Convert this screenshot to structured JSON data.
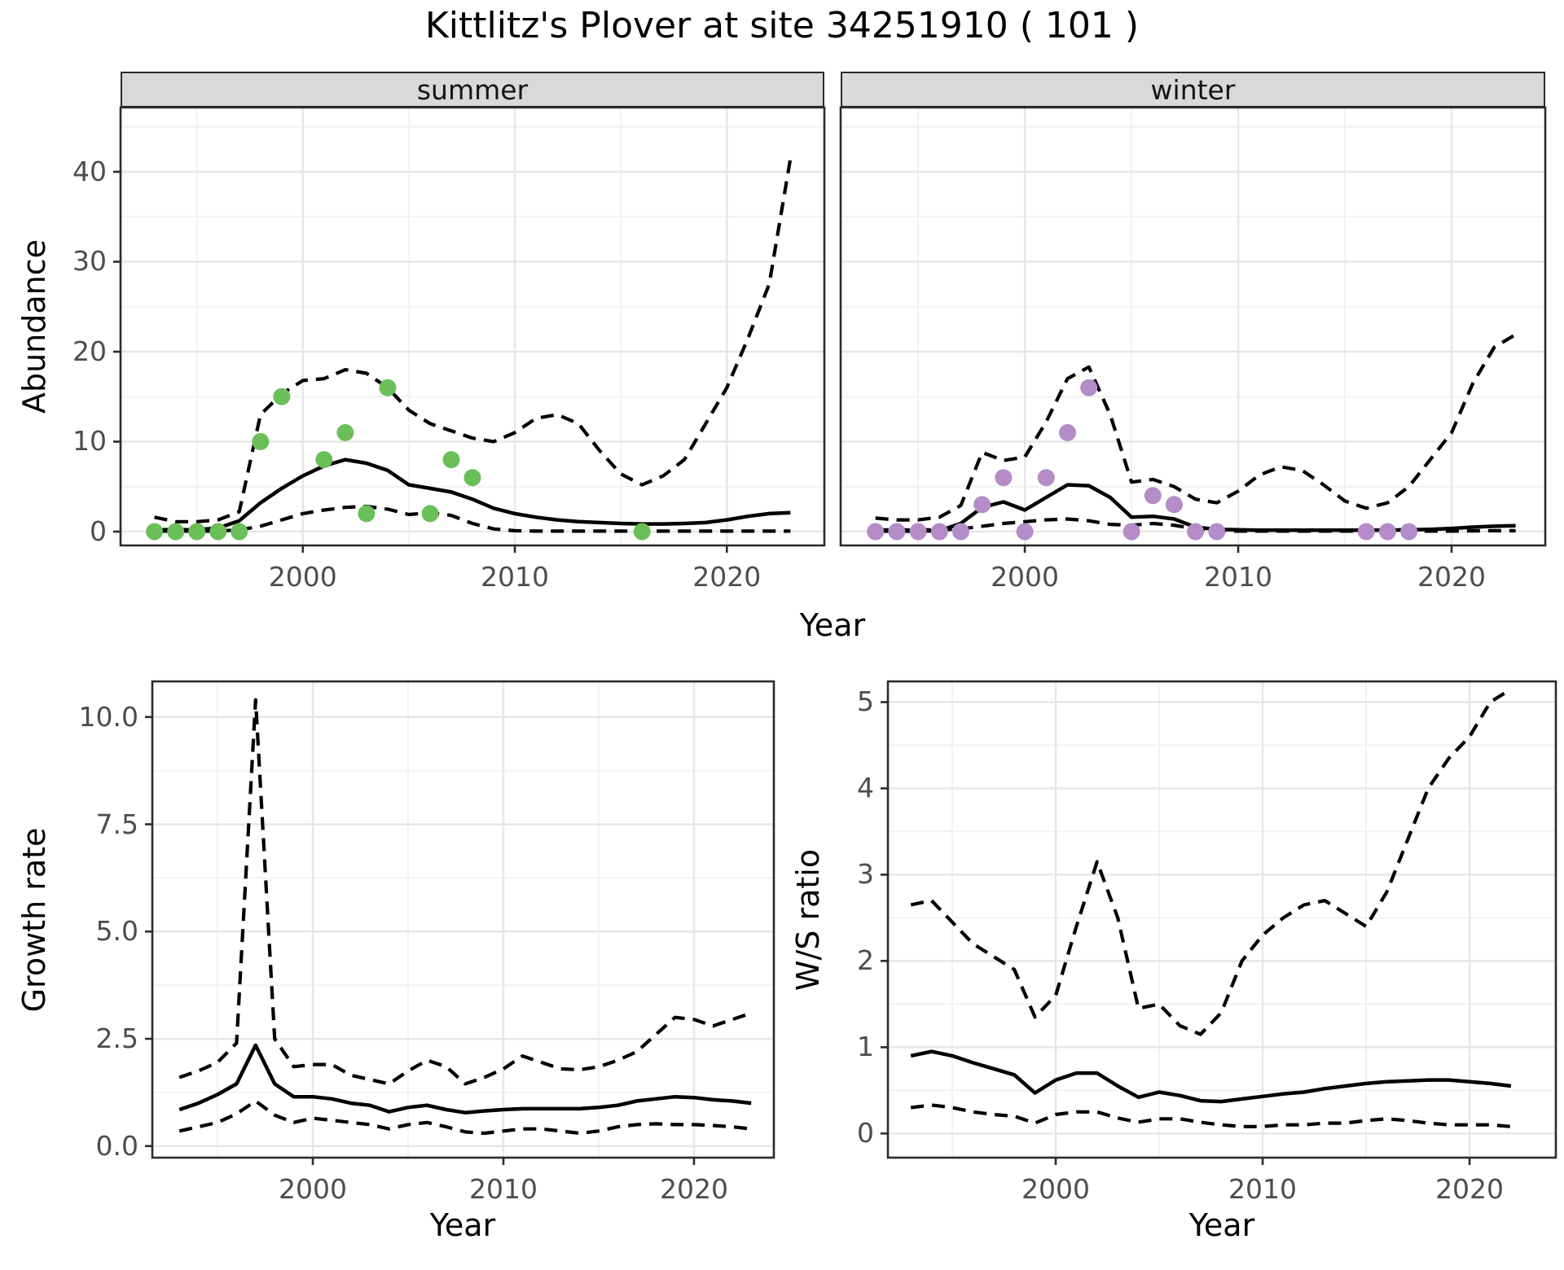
{
  "chart_data": {
    "figure_title": "Kittlitz's Plover at site 34251910 ( 101 )",
    "colors": {
      "summer_points": "#6abf59",
      "winter_points": "#b48cc8",
      "line": "#000000",
      "grid_major": "#e6e6e6",
      "grid_minor": "#f2f2f2",
      "strip_bg": "#d9d9d9",
      "panel_border": "#2b2b2b",
      "tick_text": "#4d4d4d"
    },
    "panels": [
      {
        "id": "abundance-summer",
        "type": "line",
        "facet_label": "summer",
        "ylabel": "Abundance",
        "xlabel": "Year",
        "x_ticks": [
          {
            "v": 2000,
            "label": "2000"
          },
          {
            "v": 2010,
            "label": "2010"
          },
          {
            "v": 2020,
            "label": "2020"
          }
        ],
        "y_ticks": [
          {
            "v": 0,
            "label": "0"
          },
          {
            "v": 10,
            "label": "10"
          },
          {
            "v": 20,
            "label": "20"
          },
          {
            "v": 30,
            "label": "30"
          },
          {
            "v": 40,
            "label": "40"
          }
        ],
        "x_minor": [
          1995,
          2005,
          2015
        ],
        "y_minor": [
          5,
          15,
          25,
          35,
          45
        ],
        "show_y_tick_marks": true,
        "series": [
          {
            "name": "upper_ci",
            "type": "line",
            "linestyle": "dashed",
            "x_start": 1993,
            "y": [
              1.6,
              1.1,
              1.1,
              1.3,
              2.2,
              13,
              15.3,
              16.8,
              17,
              18,
              17.6,
              16,
              13.5,
              12,
              11.2,
              10.4,
              10,
              11,
              12.6,
              13,
              12,
              9,
              6.4,
              5.2,
              6.2,
              8,
              12,
              16,
              21.5,
              27.5,
              41.5
            ]
          },
          {
            "name": "lower_ci",
            "type": "line",
            "linestyle": "dashed",
            "x_start": 1993,
            "y": [
              0.05,
              0.05,
              0.05,
              0.05,
              0.2,
              0.6,
              1.3,
              2.0,
              2.4,
              2.7,
              2.8,
              2.5,
              1.9,
              2.1,
              1.8,
              0.9,
              0.3,
              0.1,
              0.05,
              0.05,
              0.05,
              0.05,
              0.05,
              0.05,
              0.05,
              0.05,
              0.05,
              0.05,
              0.05,
              0.05,
              0.05
            ]
          },
          {
            "name": "median",
            "type": "line",
            "linestyle": "solid",
            "x_start": 1993,
            "y": [
              0.2,
              0.2,
              0.2,
              0.4,
              1.2,
              3.2,
              4.8,
              6.2,
              7.3,
              8.0,
              7.6,
              6.8,
              5.2,
              4.8,
              4.4,
              3.6,
              2.6,
              2.0,
              1.6,
              1.3,
              1.1,
              1.0,
              0.9,
              0.85,
              0.85,
              0.9,
              1.0,
              1.3,
              1.7,
              2.0,
              2.1
            ]
          },
          {
            "name": "observed_counts",
            "type": "scatter",
            "color": "#6abf59",
            "x": [
              1993,
              1994,
              1995,
              1996,
              1997,
              1998,
              1999,
              2001,
              2002,
              2003,
              2004,
              2006,
              2007,
              2008,
              2016
            ],
            "y": [
              0,
              0,
              0,
              0,
              0,
              10,
              15,
              8,
              11,
              2,
              16,
              2,
              8,
              6,
              0
            ]
          }
        ]
      },
      {
        "id": "abundance-winter",
        "type": "line",
        "facet_label": "winter",
        "ylabel": "Abundance",
        "xlabel": "Year",
        "x_ticks": [
          {
            "v": 2000,
            "label": "2000"
          },
          {
            "v": 2010,
            "label": "2010"
          },
          {
            "v": 2020,
            "label": "2020"
          }
        ],
        "y_ticks": [],
        "x_minor": [
          1995,
          2005,
          2015
        ],
        "y_minor": [
          5,
          15,
          25,
          35,
          45
        ],
        "y_major_grid": [
          0,
          10,
          20,
          30,
          40
        ],
        "show_y_tick_marks": false,
        "series": [
          {
            "name": "upper_ci",
            "type": "line",
            "linestyle": "dashed",
            "x_start": 1993,
            "y": [
              1.5,
              1.3,
              1.3,
              1.6,
              2.9,
              8.8,
              7.9,
              8.3,
              12.2,
              17.0,
              18.3,
              13.0,
              5.5,
              5.8,
              5.0,
              3.6,
              3.2,
              4.5,
              6.3,
              7.2,
              6.8,
              5.2,
              3.4,
              2.6,
              3.2,
              5.0,
              8.0,
              11.0,
              16.5,
              20.5,
              21.9
            ]
          },
          {
            "name": "lower_ci",
            "type": "line",
            "linestyle": "dashed",
            "x_start": 1993,
            "y": [
              0.2,
              0.2,
              0.2,
              0.2,
              0.3,
              0.6,
              0.9,
              1.1,
              1.3,
              1.4,
              1.2,
              0.8,
              0.7,
              0.9,
              0.7,
              0.3,
              0.1,
              0.05,
              0.05,
              0.05,
              0.05,
              0.05,
              0.05,
              0.05,
              0.05,
              0.05,
              0.05,
              0.05,
              0.08,
              0.1,
              0.1
            ]
          },
          {
            "name": "median",
            "type": "line",
            "linestyle": "solid",
            "x_start": 1993,
            "y": [
              0.05,
              0.05,
              0.05,
              0.1,
              0.9,
              2.7,
              3.3,
              2.4,
              3.8,
              5.2,
              5.1,
              3.8,
              1.6,
              1.7,
              1.4,
              0.5,
              0.25,
              0.2,
              0.15,
              0.15,
              0.15,
              0.15,
              0.15,
              0.15,
              0.15,
              0.2,
              0.25,
              0.35,
              0.5,
              0.6,
              0.65
            ]
          },
          {
            "name": "observed_counts",
            "type": "scatter",
            "color": "#b48cc8",
            "x": [
              1993,
              1994,
              1995,
              1996,
              1997,
              1998,
              1999,
              2000,
              2001,
              2002,
              2003,
              2005,
              2006,
              2007,
              2008,
              2009,
              2016,
              2017,
              2018
            ],
            "y": [
              0,
              0,
              0,
              0,
              0,
              3,
              6,
              0,
              6,
              11,
              16,
              0,
              4,
              3,
              0,
              0,
              0,
              0,
              0
            ]
          }
        ]
      },
      {
        "id": "growth-rate",
        "type": "line",
        "facet_label": "",
        "ylabel": "Growth rate",
        "xlabel": "Year",
        "x_ticks": [
          {
            "v": 2000,
            "label": "2000"
          },
          {
            "v": 2010,
            "label": "2010"
          },
          {
            "v": 2020,
            "label": "2020"
          }
        ],
        "y_ticks": [
          {
            "v": 0,
            "label": "0.0"
          },
          {
            "v": 2.5,
            "label": "2.5"
          },
          {
            "v": 5,
            "label": "5.0"
          },
          {
            "v": 7.5,
            "label": "7.5"
          },
          {
            "v": 10,
            "label": "10.0"
          }
        ],
        "x_minor": [
          1995,
          2005,
          2015
        ],
        "y_minor": [
          1.25,
          3.75,
          6.25,
          8.75
        ],
        "show_y_tick_marks": true,
        "series": [
          {
            "name": "upper_ci",
            "type": "line",
            "linestyle": "dashed",
            "x_start": 1993,
            "y": [
              1.6,
              1.75,
              1.95,
              2.4,
              10.4,
              2.5,
              1.85,
              1.9,
              1.9,
              1.65,
              1.55,
              1.45,
              1.75,
              2.0,
              1.85,
              1.45,
              1.6,
              1.8,
              2.1,
              1.95,
              1.8,
              1.78,
              1.85,
              2.0,
              2.2,
              2.6,
              3.0,
              2.95,
              2.8,
              2.95,
              3.1
            ]
          },
          {
            "name": "lower_ci",
            "type": "line",
            "linestyle": "dashed",
            "x_start": 1993,
            "y": [
              0.35,
              0.45,
              0.55,
              0.75,
              1.05,
              0.72,
              0.55,
              0.65,
              0.6,
              0.55,
              0.5,
              0.4,
              0.5,
              0.55,
              0.45,
              0.33,
              0.3,
              0.35,
              0.4,
              0.4,
              0.35,
              0.3,
              0.35,
              0.45,
              0.5,
              0.52,
              0.5,
              0.5,
              0.48,
              0.45,
              0.4
            ]
          },
          {
            "name": "median",
            "type": "line",
            "linestyle": "solid",
            "x_start": 1993,
            "y": [
              0.85,
              1.0,
              1.2,
              1.45,
              2.35,
              1.45,
              1.15,
              1.15,
              1.1,
              1.0,
              0.95,
              0.8,
              0.9,
              0.95,
              0.85,
              0.78,
              0.82,
              0.85,
              0.87,
              0.87,
              0.87,
              0.87,
              0.9,
              0.95,
              1.05,
              1.1,
              1.15,
              1.13,
              1.08,
              1.05,
              1.0
            ]
          }
        ]
      },
      {
        "id": "ws-ratio",
        "type": "line",
        "facet_label": "",
        "ylabel": "W/S ratio",
        "xlabel": "Year",
        "x_ticks": [
          {
            "v": 2000,
            "label": "2000"
          },
          {
            "v": 2010,
            "label": "2010"
          },
          {
            "v": 2020,
            "label": "2020"
          }
        ],
        "y_ticks": [
          {
            "v": 0,
            "label": "0"
          },
          {
            "v": 1,
            "label": "1"
          },
          {
            "v": 2,
            "label": "2"
          },
          {
            "v": 3,
            "label": "3"
          },
          {
            "v": 4,
            "label": "4"
          },
          {
            "v": 5,
            "label": "5"
          }
        ],
        "x_minor": [
          1995,
          2005,
          2015
        ],
        "y_minor": [
          0.5,
          1.5,
          2.5,
          3.5,
          4.5
        ],
        "show_y_tick_marks": true,
        "series": [
          {
            "name": "upper_ci",
            "type": "line",
            "linestyle": "dashed",
            "x_start": 1993,
            "y": [
              2.65,
              2.7,
              2.45,
              2.2,
              2.05,
              1.9,
              1.35,
              1.6,
              2.4,
              3.15,
              2.5,
              1.45,
              1.5,
              1.25,
              1.15,
              1.4,
              2.0,
              2.3,
              2.5,
              2.65,
              2.7,
              2.55,
              2.4,
              2.8,
              3.4,
              4.0,
              4.35,
              4.6,
              5.0,
              5.15
            ]
          },
          {
            "name": "lower_ci",
            "type": "line",
            "linestyle": "dashed",
            "x_start": 1993,
            "y": [
              0.3,
              0.33,
              0.3,
              0.25,
              0.22,
              0.2,
              0.12,
              0.22,
              0.25,
              0.25,
              0.18,
              0.13,
              0.17,
              0.17,
              0.13,
              0.1,
              0.08,
              0.08,
              0.1,
              0.1,
              0.12,
              0.12,
              0.15,
              0.17,
              0.15,
              0.12,
              0.1,
              0.1,
              0.1,
              0.08
            ]
          },
          {
            "name": "median",
            "type": "line",
            "linestyle": "solid",
            "x_start": 1993,
            "y": [
              0.9,
              0.95,
              0.9,
              0.82,
              0.75,
              0.68,
              0.47,
              0.62,
              0.7,
              0.7,
              0.55,
              0.42,
              0.48,
              0.44,
              0.38,
              0.37,
              0.4,
              0.43,
              0.46,
              0.48,
              0.52,
              0.55,
              0.58,
              0.6,
              0.61,
              0.62,
              0.62,
              0.6,
              0.58,
              0.55
            ]
          }
        ]
      }
    ]
  }
}
